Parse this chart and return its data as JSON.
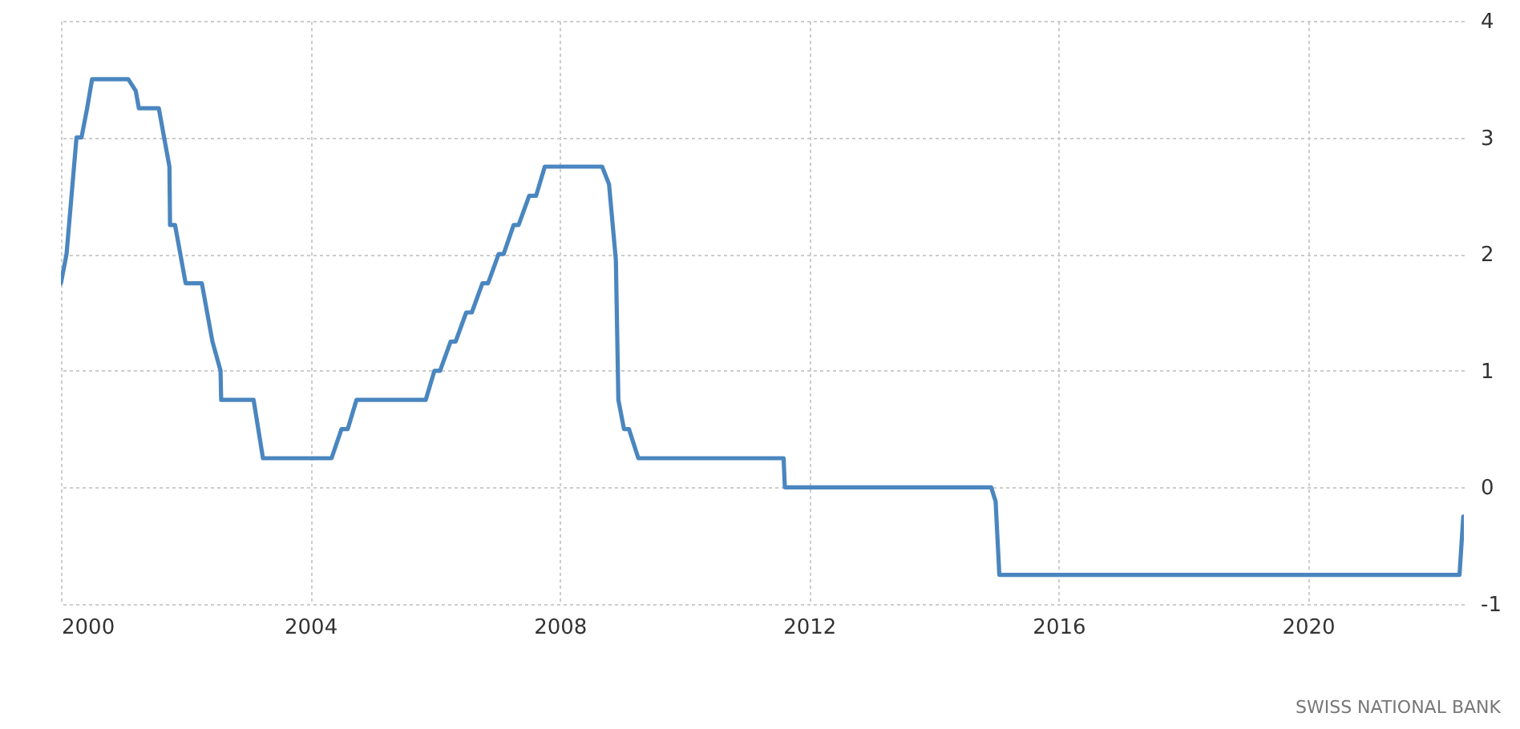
{
  "chart_data": {
    "type": "line",
    "x": [
      2000.0,
      2000.09,
      2000.25,
      2000.33,
      2000.42,
      2000.5,
      2001.08,
      2001.2,
      2001.25,
      2001.57,
      2001.74,
      2001.75,
      2001.83,
      2002.0,
      2002.26,
      2002.43,
      2002.56,
      2002.57,
      2003.09,
      2003.24,
      2004.34,
      2004.5,
      2004.6,
      2004.74,
      2005.85,
      2005.99,
      2006.08,
      2006.25,
      2006.33,
      2006.5,
      2006.59,
      2006.76,
      2006.85,
      2007.02,
      2007.1,
      2007.26,
      2007.34,
      2007.51,
      2007.62,
      2007.76,
      2008.68,
      2008.79,
      2008.9,
      2008.94,
      2009.03,
      2009.11,
      2009.26,
      2011.59,
      2011.61,
      2014.92,
      2014.99,
      2015.05,
      2022.43,
      2022.49
    ],
    "series": [
      {
        "color": "#4a86bf",
        "values": [
          1.75,
          2.0,
          3.0,
          3.0,
          3.25,
          3.5,
          3.5,
          3.4,
          3.25,
          3.25,
          2.75,
          2.25,
          2.25,
          1.75,
          1.75,
          1.25,
          1.0,
          0.75,
          0.75,
          0.25,
          0.25,
          0.5,
          0.5,
          0.75,
          0.75,
          1.0,
          1.0,
          1.25,
          1.25,
          1.5,
          1.5,
          1.75,
          1.75,
          2.0,
          2.0,
          2.25,
          2.25,
          2.5,
          2.5,
          2.75,
          2.75,
          2.6,
          1.95,
          0.75,
          0.5,
          0.5,
          0.25,
          0.25,
          0.0,
          0.0,
          -0.12,
          -0.75,
          -0.75,
          -0.25
        ]
      }
    ],
    "xlim": [
      2000,
      2022.5
    ],
    "xticks": [
      2000,
      2004,
      2008,
      2012,
      2016,
      2020
    ],
    "ylim": [
      -1,
      4
    ],
    "yticks": [
      -1,
      0,
      1,
      2,
      3,
      4
    ],
    "grid": true,
    "line_style": "solid",
    "annotations": [
      "SWISS NATIONAL BANK"
    ]
  }
}
